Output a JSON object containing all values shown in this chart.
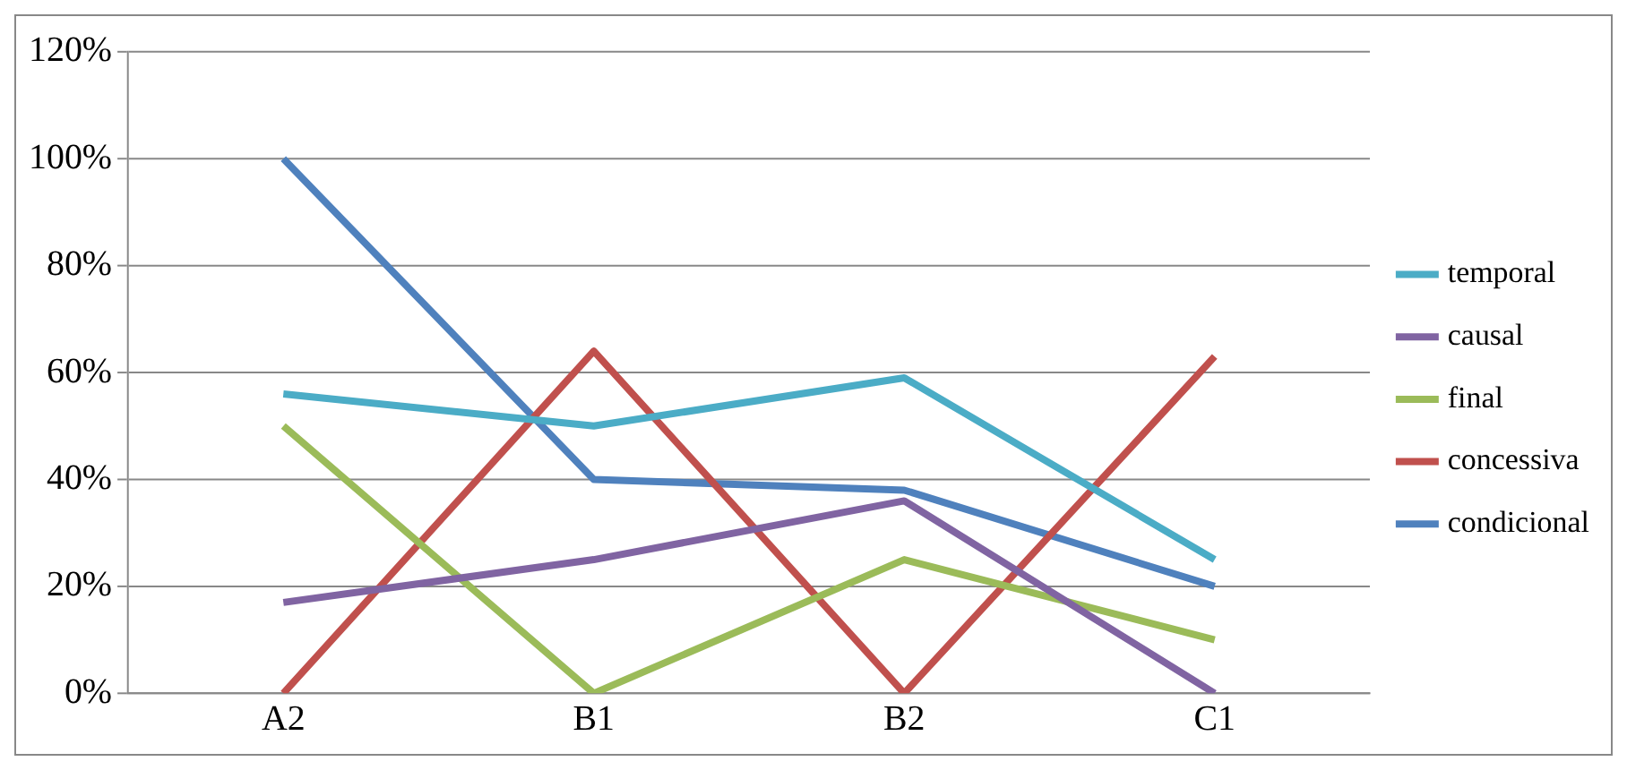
{
  "chart_data": {
    "type": "line",
    "categories": [
      "A2",
      "B1",
      "B2",
      "C1"
    ],
    "series": [
      {
        "name": "temporal",
        "color": "#4bacc6",
        "values": [
          56,
          50,
          59,
          25
        ]
      },
      {
        "name": "causal",
        "color": "#8064a2",
        "values": [
          17,
          25,
          36,
          0
        ]
      },
      {
        "name": "final",
        "color": "#9bbb59",
        "values": [
          50,
          0,
          25,
          10
        ]
      },
      {
        "name": "concessiva",
        "color": "#c0504d",
        "values": [
          0,
          64,
          0,
          63
        ]
      },
      {
        "name": "condicional",
        "color": "#4f81bd",
        "values": [
          100,
          40,
          38,
          20
        ]
      }
    ],
    "ylim": [
      0,
      120
    ],
    "yticks": [
      {
        "value": 0,
        "label": "0%"
      },
      {
        "value": 20,
        "label": "20%"
      },
      {
        "value": 40,
        "label": "40%"
      },
      {
        "value": 60,
        "label": "60%"
      },
      {
        "value": 80,
        "label": "80%"
      },
      {
        "value": 100,
        "label": "100%"
      },
      {
        "value": 120,
        "label": "120%"
      }
    ],
    "grid": "y",
    "legend": "right",
    "marker": "none",
    "line_style": "solid"
  }
}
